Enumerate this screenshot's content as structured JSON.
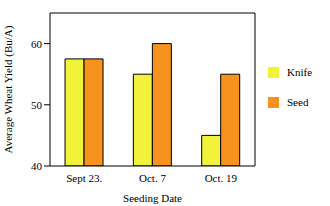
{
  "chart_data": {
    "type": "bar",
    "x_label": "Seeding Date",
    "y_label": "Average Wheat Yield (Bu/A)",
    "categories": [
      "Sept 23.",
      "Oct. 7",
      "Oct. 19"
    ],
    "series": [
      {
        "name": "Knife",
        "color": "#f2f23a",
        "values": [
          57.5,
          55,
          45
        ]
      },
      {
        "name": "Seed",
        "color": "#f7921e",
        "values": [
          57.5,
          60,
          55
        ]
      }
    ],
    "ylim": [
      40,
      65
    ],
    "yticks": [
      40,
      50,
      60
    ],
    "legend": "right"
  }
}
